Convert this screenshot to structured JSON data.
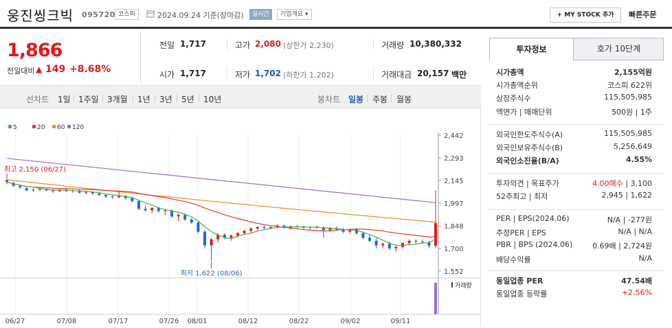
{
  "header": {
    "name": "웅진씽크빅",
    "code": "095720",
    "market": "코스피",
    "date": "2024.09.24 기준(장마감)",
    "realtime": "실시간",
    "overview": "기업개요",
    "mystock": "MY STOCK 추가",
    "quick_order": "빠른주문"
  },
  "price": {
    "current": "1,866",
    "change_label": "전일대비",
    "change_arrow": "▲",
    "change": "149",
    "change_pct": "+8.68%"
  },
  "summary": {
    "prev_close_label": "전일",
    "prev_close": "1,717",
    "high_label": "고가",
    "high": "2,080",
    "upper_limit": "(상한가 2,230)",
    "volume_label": "거래량",
    "volume": "10,380,332",
    "open_label": "시가",
    "open": "1,717",
    "low_label": "저가",
    "low": "1,702",
    "lower_limit": "(하한가 1,202)",
    "amount_label": "거래대금",
    "amount": "20,157",
    "amount_unit": "백만"
  },
  "toolbar": {
    "line_chart": "선차트",
    "periods": [
      "1일",
      "1주일",
      "3개월",
      "1년",
      "3년",
      "5년",
      "10년"
    ],
    "candle_chart": "봉차트",
    "candle_periods": [
      "일봉",
      "주봉",
      "월봉"
    ]
  },
  "chart_data": {
    "type": "candlestick",
    "legend": [
      "5",
      "20",
      "60",
      "120"
    ],
    "legend_colors": [
      "#4caf50",
      "#e53935",
      "#f08a1c",
      "#9c6bd1"
    ],
    "y_ticks": [
      "2,442",
      "2,293",
      "2,145",
      "1,997",
      "1,848",
      "1,700",
      "1,552"
    ],
    "y_values": [
      2442,
      2293,
      2145,
      1997,
      1848,
      1700,
      1552
    ],
    "x_ticks": [
      "06/27",
      "07/08",
      "07/17",
      "07/26",
      "08/01",
      "08/12",
      "08/22",
      "09/02",
      "09/11"
    ],
    "high_note": "최고 2,150 (06/27)",
    "low_note": "최저 1,622 (08/06)",
    "volume_label": "거래량",
    "candles": [
      [
        2150,
        2150,
        2120,
        2135
      ],
      [
        2130,
        2135,
        2105,
        2110
      ],
      [
        2110,
        2115,
        2090,
        2100
      ],
      [
        2095,
        2100,
        2075,
        2080
      ],
      [
        2085,
        2095,
        2070,
        2085
      ],
      [
        2085,
        2100,
        2075,
        2090
      ],
      [
        2090,
        2095,
        2075,
        2080
      ],
      [
        2080,
        2090,
        2065,
        2075
      ],
      [
        2075,
        2090,
        2070,
        2085
      ],
      [
        2085,
        2090,
        2070,
        2075
      ],
      [
        2075,
        2085,
        2065,
        2080
      ],
      [
        2080,
        2085,
        2060,
        2065
      ],
      [
        2065,
        2075,
        2055,
        2070
      ],
      [
        2070,
        2075,
        2050,
        2060
      ],
      [
        2060,
        2070,
        2045,
        2050
      ],
      [
        2050,
        2060,
        2030,
        2040
      ],
      [
        2040,
        2050,
        2025,
        2035
      ],
      [
        2035,
        2080,
        2030,
        2045
      ],
      [
        2045,
        2050,
        2020,
        2030
      ],
      [
        2030,
        2040,
        2000,
        2010
      ],
      [
        2010,
        2020,
        1950,
        1960
      ],
      [
        1960,
        1980,
        1940,
        1950
      ],
      [
        1950,
        1970,
        1930,
        1965
      ],
      [
        1965,
        1975,
        1935,
        1945
      ],
      [
        1945,
        1960,
        1920,
        1950
      ],
      [
        1950,
        1955,
        1900,
        1910
      ],
      [
        1910,
        1930,
        1880,
        1920
      ],
      [
        1920,
        1930,
        1880,
        1890
      ],
      [
        1890,
        1900,
        1860,
        1870
      ],
      [
        1870,
        1880,
        1800,
        1810
      ],
      [
        1810,
        1820,
        1700,
        1720
      ],
      [
        1720,
        1770,
        1622,
        1760
      ],
      [
        1760,
        1800,
        1740,
        1790
      ],
      [
        1790,
        1800,
        1760,
        1770
      ],
      [
        1770,
        1790,
        1750,
        1785
      ],
      [
        1785,
        1810,
        1770,
        1800
      ],
      [
        1800,
        1820,
        1790,
        1815
      ],
      [
        1815,
        1840,
        1800,
        1830
      ],
      [
        1830,
        1845,
        1815,
        1840
      ],
      [
        1840,
        1850,
        1820,
        1835
      ],
      [
        1835,
        1845,
        1825,
        1840
      ],
      [
        1840,
        1860,
        1830,
        1850
      ],
      [
        1850,
        1855,
        1830,
        1835
      ],
      [
        1835,
        1850,
        1825,
        1845
      ],
      [
        1845,
        1855,
        1830,
        1840
      ],
      [
        1840,
        1850,
        1830,
        1835
      ],
      [
        1835,
        1845,
        1825,
        1840
      ],
      [
        1840,
        1850,
        1830,
        1838
      ],
      [
        1838,
        1845,
        1770,
        1820
      ],
      [
        1820,
        1840,
        1810,
        1830
      ],
      [
        1830,
        1845,
        1815,
        1825
      ],
      [
        1825,
        1835,
        1800,
        1810
      ],
      [
        1810,
        1830,
        1800,
        1825
      ],
      [
        1825,
        1835,
        1790,
        1800
      ],
      [
        1800,
        1810,
        1760,
        1770
      ],
      [
        1770,
        1790,
        1740,
        1750
      ],
      [
        1750,
        1770,
        1700,
        1720
      ],
      [
        1720,
        1740,
        1700,
        1730
      ],
      [
        1730,
        1745,
        1690,
        1700
      ],
      [
        1700,
        1720,
        1680,
        1710
      ],
      [
        1710,
        1740,
        1700,
        1735
      ],
      [
        1735,
        1760,
        1720,
        1750
      ],
      [
        1750,
        1760,
        1730,
        1745
      ],
      [
        1745,
        1760,
        1735,
        1740
      ],
      [
        1740,
        1750,
        1700,
        1717
      ],
      [
        1717,
        2080,
        1702,
        1866
      ]
    ]
  },
  "right": {
    "tab1": "투자정보",
    "tab2": "호가 10단계",
    "rows1": [
      {
        "label": "시가총액",
        "value": "2,155억원",
        "bold": true
      },
      {
        "label": "시가총액순위",
        "value": "코스피 622위"
      },
      {
        "label": "상장주식수",
        "value": "115,505,985"
      },
      {
        "label": "액면가 | 매매단위",
        "value": "500원  |  1주"
      }
    ],
    "rows2": [
      {
        "label": "외국인한도주식수(A)",
        "value": "115,505,985"
      },
      {
        "label": "외국인보유주식수(B)",
        "value": "5,256,649"
      },
      {
        "label": "외국인소진율(B/A)",
        "value": "4.55%",
        "bold": true
      }
    ],
    "rows3": [
      {
        "label": "투자의견 | 목표주가",
        "value_red": "4.00매수",
        "value": " | 3,100"
      },
      {
        "label": "52주최고 | 최저",
        "value": "2,945 | 1,622"
      }
    ],
    "rows4": [
      {
        "label": "PER | EPS(2024.06)",
        "value": "N/A | -277원"
      },
      {
        "label": "추정PER | EPS",
        "value": "N/A | N/A"
      },
      {
        "label": "PBR | BPS (2024.06)",
        "value": "0.69배 | 2,724원"
      },
      {
        "label": "배당수익률",
        "value": "N/A"
      }
    ],
    "rows5": [
      {
        "label": "동일업종 PER",
        "value": "47.54배",
        "bold": true
      },
      {
        "label": "동일업종 등락률",
        "value": "+2.56%",
        "red": true
      }
    ]
  }
}
